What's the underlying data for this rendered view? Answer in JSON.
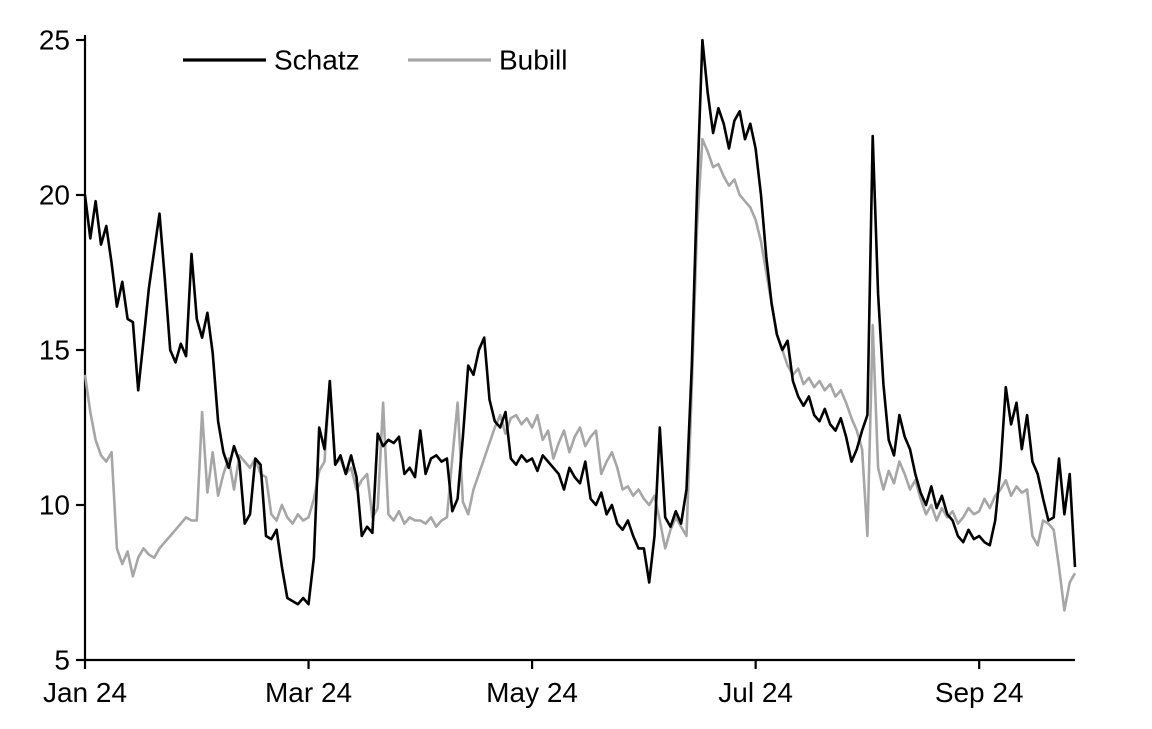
{
  "chart_data": {
    "type": "line",
    "title": "",
    "xlabel": "",
    "ylabel": "",
    "ylim": [
      5,
      25
    ],
    "y_ticks": [
      5,
      10,
      15,
      20,
      25
    ],
    "x_tick_labels": [
      "Jan 24",
      "Mar 24",
      "May 24",
      "Jul 24",
      "Sep 24"
    ],
    "x_tick_indices": [
      0,
      42,
      84,
      126,
      168
    ],
    "n_points": 187,
    "grid": false,
    "legend_position": "top-inside",
    "axis_color": "#000000",
    "series": [
      {
        "name": "Schatz",
        "color": "#000000",
        "values": [
          20.0,
          18.6,
          19.8,
          18.4,
          19.0,
          17.8,
          16.4,
          17.2,
          16.0,
          15.9,
          13.7,
          15.3,
          17.0,
          18.2,
          19.4,
          17.3,
          15.0,
          14.6,
          15.2,
          14.8,
          18.1,
          16.0,
          15.4,
          16.2,
          14.9,
          12.7,
          11.7,
          11.2,
          11.9,
          11.4,
          9.4,
          9.7,
          11.5,
          11.3,
          9.0,
          8.9,
          9.2,
          8.0,
          7.0,
          6.9,
          6.8,
          7.0,
          6.8,
          8.3,
          12.5,
          11.8,
          14.0,
          11.3,
          11.6,
          11.0,
          11.6,
          10.9,
          9.0,
          9.3,
          9.1,
          12.3,
          11.9,
          12.1,
          12.0,
          12.2,
          11.0,
          11.2,
          10.9,
          12.4,
          11.0,
          11.5,
          11.6,
          11.4,
          11.5,
          9.8,
          10.2,
          12.2,
          14.5,
          14.2,
          15.0,
          15.4,
          13.4,
          12.7,
          12.5,
          13.0,
          11.5,
          11.3,
          11.6,
          11.4,
          11.5,
          11.1,
          11.6,
          11.4,
          11.2,
          11.0,
          10.5,
          11.2,
          10.9,
          10.7,
          11.4,
          10.2,
          10.0,
          10.4,
          9.7,
          10.0,
          9.4,
          9.2,
          9.5,
          9.0,
          8.6,
          8.6,
          7.5,
          9.0,
          12.5,
          9.6,
          9.3,
          9.8,
          9.4,
          10.5,
          14.5,
          20.2,
          25.0,
          23.3,
          22.0,
          22.8,
          22.3,
          21.5,
          22.4,
          22.7,
          21.8,
          22.3,
          21.5,
          20.0,
          18.0,
          16.5,
          15.5,
          15.0,
          15.3,
          14.0,
          13.5,
          13.2,
          13.5,
          12.9,
          12.7,
          13.1,
          12.6,
          12.4,
          12.8,
          12.2,
          11.4,
          11.8,
          12.4,
          12.9,
          21.9,
          16.8,
          13.9,
          12.1,
          11.6,
          12.9,
          12.2,
          11.8,
          11.0,
          10.4,
          10.0,
          10.6,
          9.9,
          10.3,
          9.7,
          9.5,
          9.0,
          8.8,
          9.2,
          8.9,
          9.0,
          8.8,
          8.7,
          9.5,
          11.2,
          13.8,
          12.6,
          13.3,
          11.8,
          12.9,
          11.4,
          11.0,
          10.2,
          9.5,
          9.6,
          11.5,
          9.7,
          11.0,
          8.0
        ]
      },
      {
        "name": "Bubill",
        "color": "#a6a6a6",
        "values": [
          14.2,
          13.0,
          12.1,
          11.6,
          11.4,
          11.7,
          8.6,
          8.1,
          8.5,
          7.7,
          8.3,
          8.6,
          8.4,
          8.3,
          8.6,
          8.8,
          9.0,
          9.2,
          9.4,
          9.6,
          9.5,
          9.5,
          13.0,
          10.4,
          11.7,
          10.3,
          11.0,
          11.5,
          10.5,
          11.6,
          11.4,
          11.2,
          11.5,
          11.0,
          10.9,
          9.7,
          9.5,
          10.0,
          9.6,
          9.4,
          9.7,
          9.5,
          9.6,
          10.2,
          11.1,
          11.4,
          14.0,
          11.3,
          11.5,
          11.0,
          11.2,
          10.5,
          10.8,
          11.0,
          9.6,
          9.9,
          13.3,
          9.7,
          9.5,
          9.8,
          9.4,
          9.6,
          9.5,
          9.5,
          9.4,
          9.6,
          9.3,
          9.5,
          9.6,
          11.5,
          13.3,
          10.1,
          9.7,
          10.5,
          11.0,
          11.5,
          12.0,
          12.5,
          12.9,
          12.3,
          12.8,
          12.9,
          12.6,
          12.8,
          12.5,
          12.9,
          12.1,
          12.4,
          11.5,
          12.0,
          12.4,
          11.7,
          12.2,
          12.5,
          11.9,
          12.2,
          12.4,
          11.0,
          11.4,
          11.7,
          11.2,
          10.5,
          10.6,
          10.3,
          10.5,
          10.2,
          10.0,
          10.3,
          9.5,
          8.6,
          9.2,
          9.6,
          9.3,
          9.0,
          13.8,
          19.0,
          21.8,
          21.4,
          20.9,
          21.0,
          20.6,
          20.3,
          20.5,
          20.0,
          19.8,
          19.6,
          19.2,
          18.5,
          17.5,
          16.5,
          15.5,
          15.0,
          14.5,
          14.2,
          14.4,
          13.9,
          14.1,
          13.8,
          14.0,
          13.7,
          13.9,
          13.5,
          13.7,
          13.3,
          12.8,
          12.4,
          11.8,
          9.0,
          15.8,
          11.2,
          10.5,
          11.1,
          10.7,
          11.4,
          11.0,
          10.5,
          10.8,
          10.2,
          9.7,
          10.0,
          9.5,
          9.9,
          9.6,
          9.8,
          9.4,
          9.6,
          9.9,
          9.7,
          9.8,
          10.2,
          9.9,
          10.3,
          10.5,
          10.8,
          10.3,
          10.6,
          10.4,
          10.5,
          9.0,
          8.7,
          9.5,
          9.4,
          9.2,
          8.0,
          6.6,
          7.5,
          7.8
        ]
      }
    ]
  }
}
